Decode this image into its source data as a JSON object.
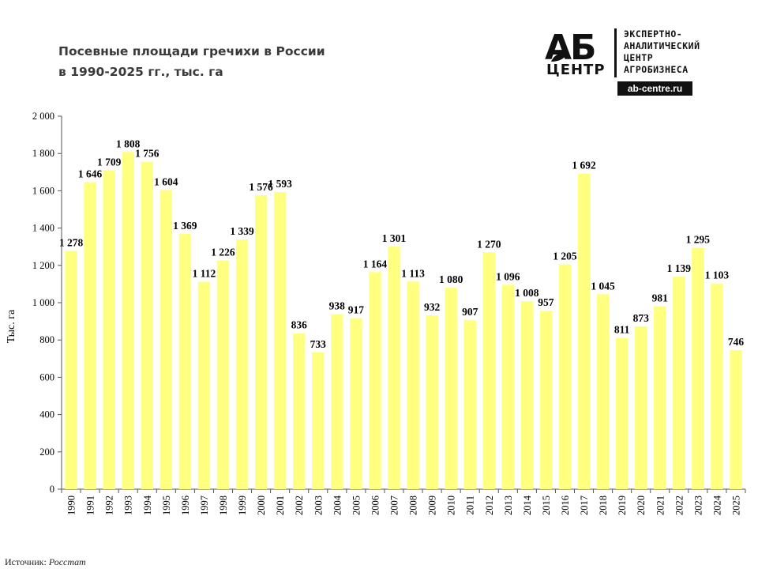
{
  "title_line1": "Посевные площади гречихи в России",
  "title_line2": "в 1990-2025 гг., тыс. га",
  "logo": {
    "mark_top": "АБ",
    "mark_bottom": "ЦЕНТР",
    "lines": [
      "ЭКСПЕРТНО-",
      "АНАЛИТИЧЕСКИЙ",
      "ЦЕНТР",
      "АГРОБИЗНЕСА"
    ],
    "url": "ab-centre.ru"
  },
  "source_label": "Источник:",
  "source_value": "Росстат",
  "colors": {
    "bar": "#ffff80",
    "axis": "#555555",
    "text": "#000000"
  },
  "chart_data": {
    "type": "bar",
    "title": "Посевные площади гречихи в России в 1990-2025 гг., тыс. га",
    "ylabel": "Тыс. га",
    "ylim": [
      0,
      2000
    ],
    "yticks": [
      0,
      200,
      400,
      600,
      800,
      1000,
      1200,
      1400,
      1600,
      1800,
      2000
    ],
    "ytick_labels": [
      "0",
      "200",
      "400",
      "600",
      "800",
      "1 000",
      "1 200",
      "1 400",
      "1 600",
      "1 800",
      "2 000"
    ],
    "categories": [
      "1990",
      "1991",
      "1992",
      "1993",
      "1994",
      "1995",
      "1996",
      "1997",
      "1998",
      "1999",
      "2000",
      "2001",
      "2002",
      "2003",
      "2004",
      "2005",
      "2006",
      "2007",
      "2008",
      "2009",
      "2010",
      "2011",
      "2012",
      "2013",
      "2014",
      "2015",
      "2016",
      "2017",
      "2018",
      "2019",
      "2020",
      "2021",
      "2022",
      "2023",
      "2024",
      "2025"
    ],
    "values": [
      1278,
      1646,
      1709,
      1808,
      1756,
      1604,
      1369,
      1112,
      1226,
      1339,
      1576,
      1593,
      836,
      733,
      938,
      917,
      1164,
      1301,
      1113,
      932,
      1080,
      907,
      1270,
      1096,
      1008,
      957,
      1205,
      1692,
      1045,
      811,
      873,
      981,
      1139,
      1295,
      1103,
      746
    ],
    "value_labels": [
      "1 278",
      "1 646",
      "1 709",
      "1 808",
      "1 756",
      "1 604",
      "1 369",
      "1 112",
      "1 226",
      "1 339",
      "1 576",
      "1 593",
      "836",
      "733",
      "938",
      "917",
      "1 164",
      "1 301",
      "1 113",
      "932",
      "1 080",
      "907",
      "1 270",
      "1 096",
      "1 008",
      "957",
      "1 205",
      "1 692",
      "1 045",
      "811",
      "873",
      "981",
      "1 139",
      "1 295",
      "1 103",
      "746"
    ],
    "grid": false,
    "legend": "none"
  }
}
